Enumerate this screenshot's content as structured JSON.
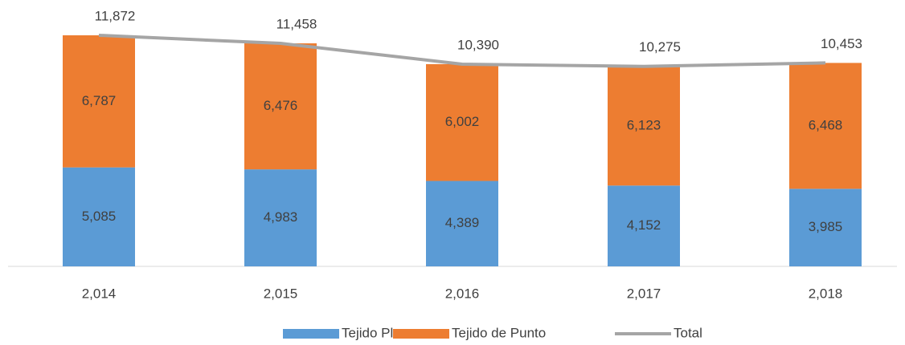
{
  "chart_data": {
    "type": "bar",
    "stacked": true,
    "categories": [
      "2,014",
      "2,015",
      "2,016",
      "2,017",
      "2,018"
    ],
    "ylim": [
      0,
      13000
    ],
    "series": [
      {
        "name": "Tejido Plano",
        "type": "bar",
        "color": "#5b9bd5",
        "values": [
          5085,
          4983,
          4389,
          4152,
          3985
        ],
        "value_labels": [
          "5,085",
          "4,983",
          "4,389",
          "4,152",
          "3,985"
        ]
      },
      {
        "name": "Tejido de Punto",
        "type": "bar",
        "color": "#ed7d31",
        "values": [
          6787,
          6476,
          6002,
          6123,
          6468
        ],
        "value_labels": [
          "6,787",
          "6,476",
          "6,002",
          "6,123",
          "6,468"
        ]
      },
      {
        "name": "Total",
        "type": "line",
        "color": "#a5a5a5",
        "values": [
          11872,
          11458,
          10390,
          10275,
          10453
        ],
        "value_labels": [
          "11,872",
          "11,458",
          "10,390",
          "10,275",
          "10,453"
        ]
      }
    ]
  }
}
